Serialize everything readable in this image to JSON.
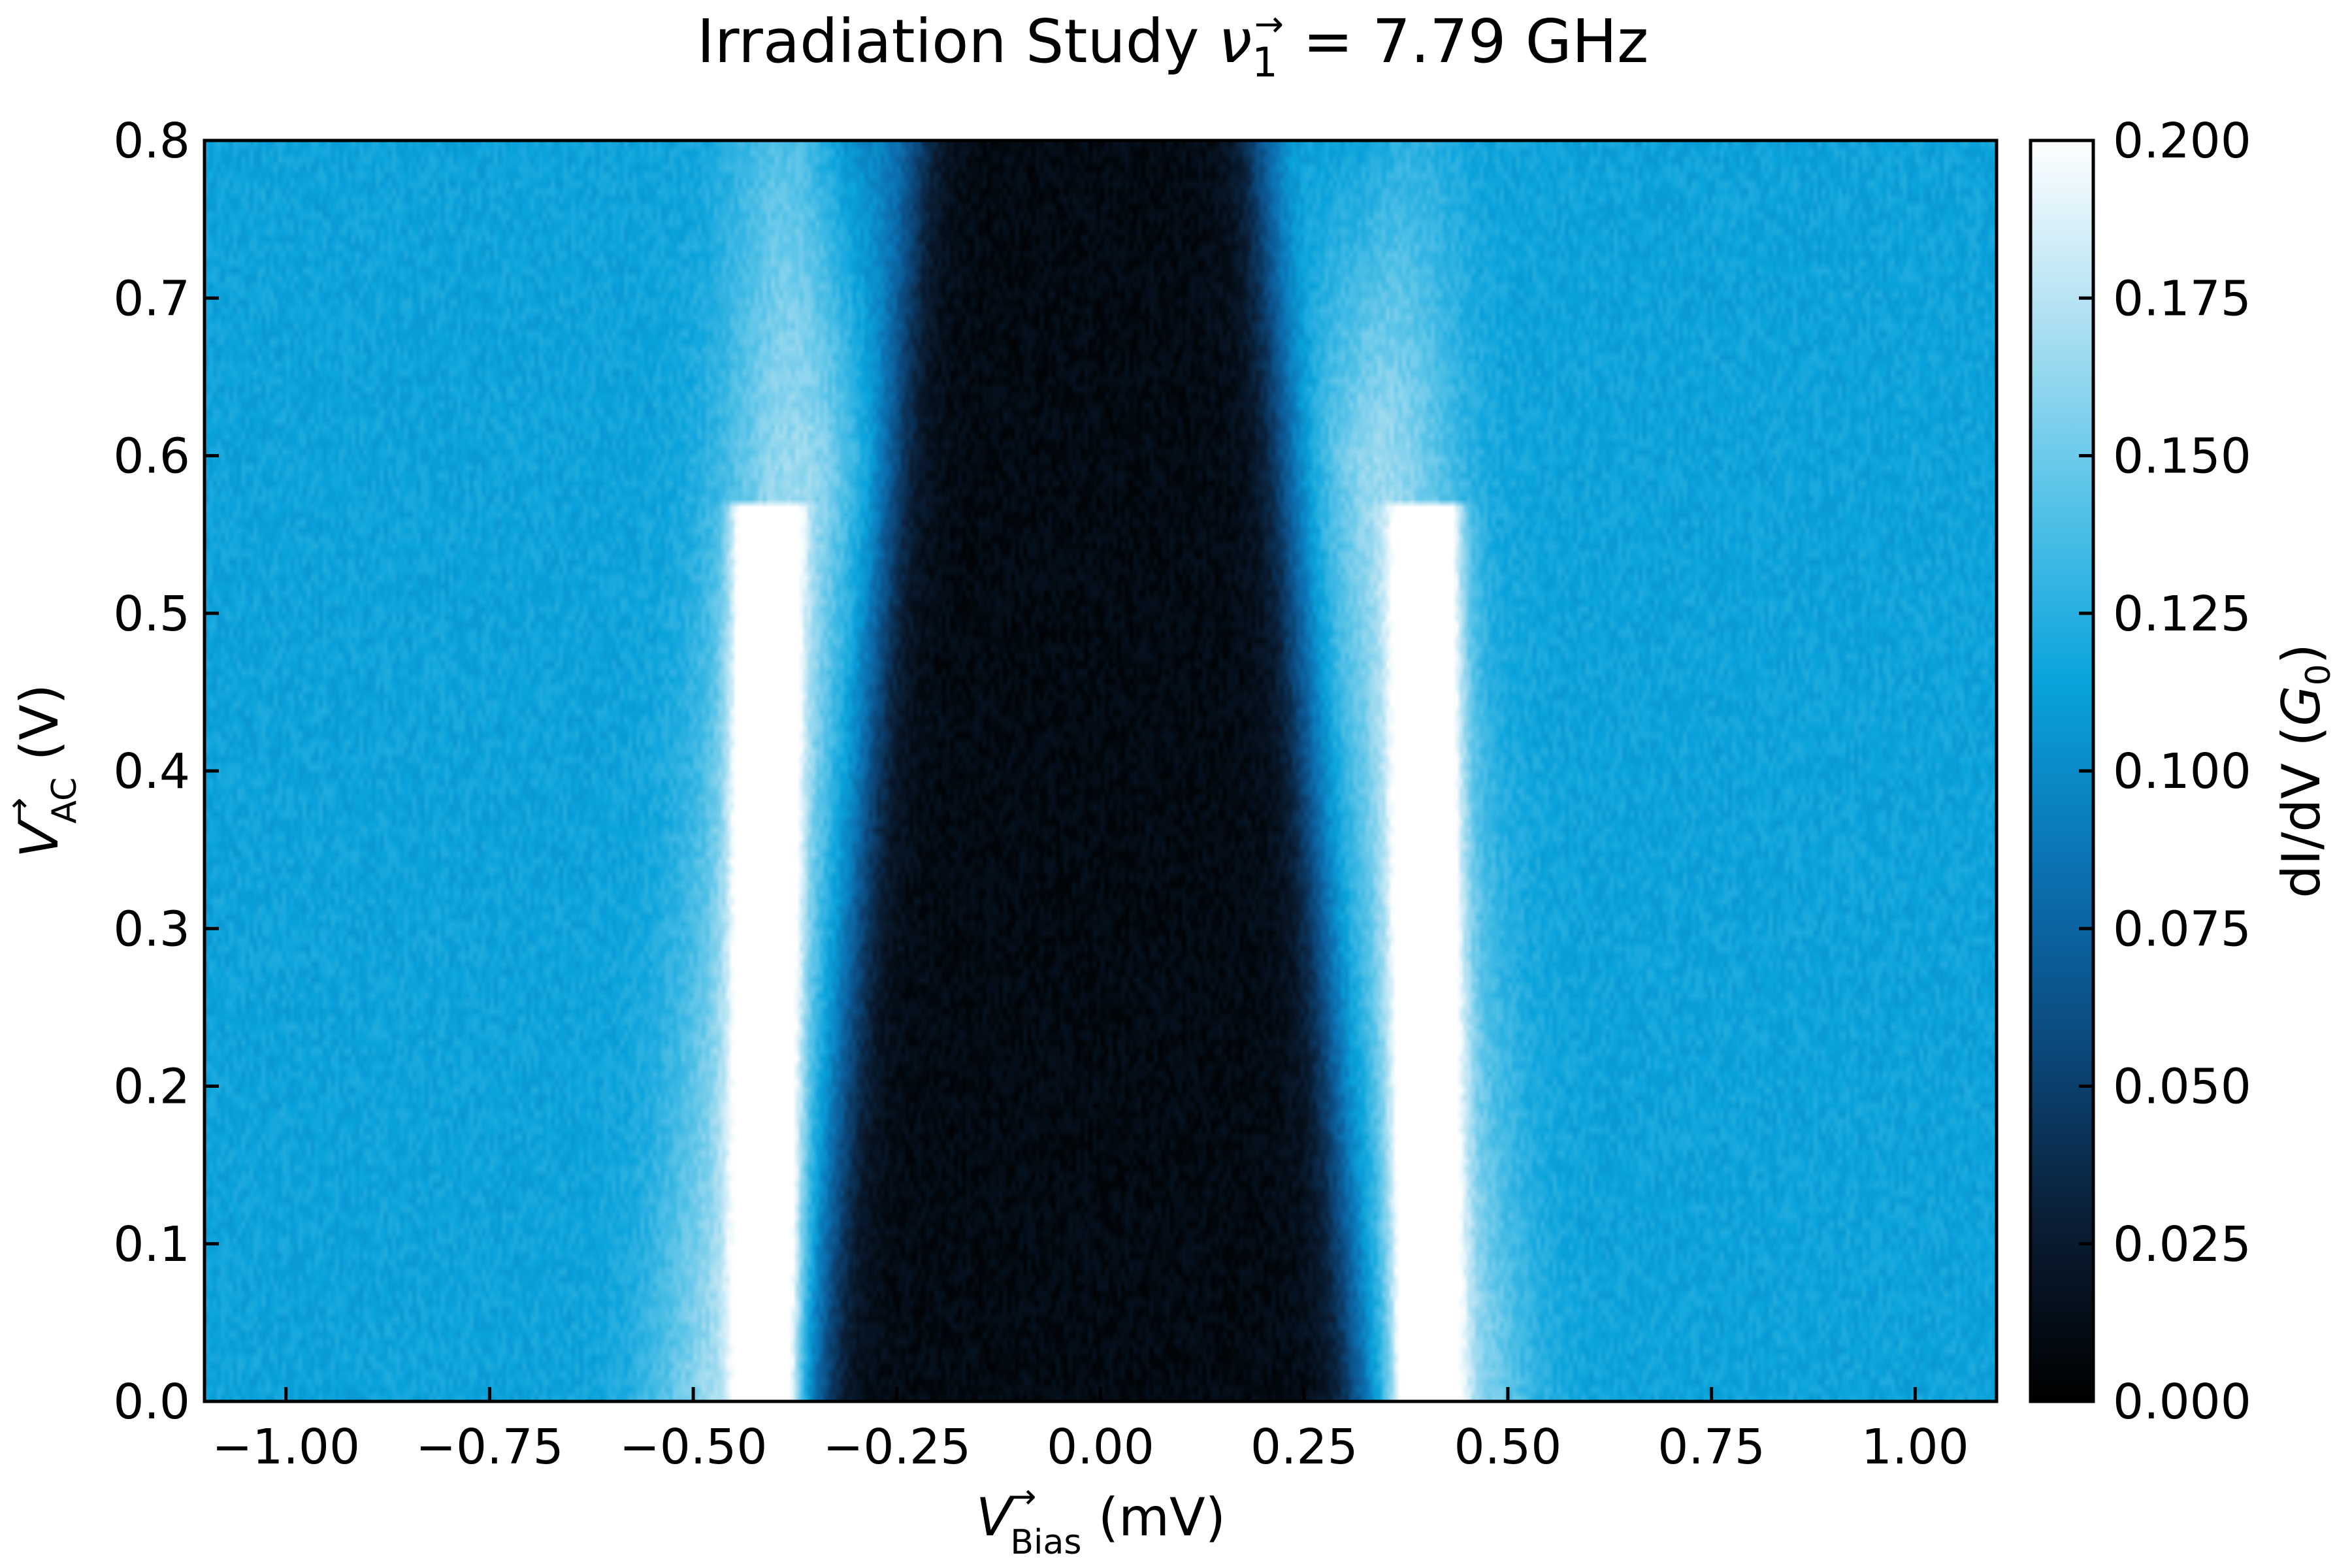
{
  "chart_data": {
    "type": "heatmap",
    "title_main": "Irradiation Study ",
    "title_symbol": "ν",
    "title_sub": "1",
    "title_sup": "→",
    "title_value": " = 7.79 GHz",
    "xlabel_symbol": "V",
    "xlabel_sup": "→",
    "xlabel_sub": "Bias",
    "xlabel_unit": " (mV)",
    "ylabel_symbol": "V",
    "ylabel_sup": "→",
    "ylabel_sub": "AC",
    "ylabel_unit": " (V)",
    "colorbar_label_prefix": "dI/dV (",
    "colorbar_label_symbol": "G",
    "colorbar_label_sub": "0",
    "colorbar_label_suffix": ")",
    "xlim": [
      -1.1,
      1.1
    ],
    "ylim": [
      0.0,
      0.8
    ],
    "clim": [
      0.0,
      0.2
    ],
    "colormap": [
      "#000000",
      "#0a1e35",
      "#0b4a7e",
      "#0b73b4",
      "#0aa3dc",
      "#57c3e8",
      "#aee0f2",
      "#ffffff"
    ],
    "x_ticks": [
      -1.0,
      -0.75,
      -0.5,
      -0.25,
      0.0,
      0.25,
      0.5,
      0.75,
      1.0
    ],
    "x_tick_labels": [
      "−1.00",
      "−0.75",
      "−0.50",
      "−0.25",
      "0.00",
      "0.25",
      "0.50",
      "0.75",
      "1.00"
    ],
    "y_ticks": [
      0.0,
      0.1,
      0.2,
      0.3,
      0.4,
      0.5,
      0.6,
      0.7,
      0.8
    ],
    "y_tick_labels": [
      "0.0",
      "0.1",
      "0.2",
      "0.3",
      "0.4",
      "0.5",
      "0.6",
      "0.7",
      "0.8"
    ],
    "colorbar_ticks": [
      0.0,
      0.025,
      0.05,
      0.075,
      0.1,
      0.125,
      0.15,
      0.175,
      0.2
    ],
    "colorbar_tick_labels": [
      "0.000",
      "0.025",
      "0.050",
      "0.075",
      "0.100",
      "0.125",
      "0.150",
      "0.175",
      "0.200"
    ],
    "field": {
      "background_value": 0.115,
      "gap_center": -0.015,
      "gap_half_width_at_zero": 0.33,
      "gap_half_width_at_top": 0.21,
      "gap_value": 0.01,
      "coherence_peak_positions": [
        -0.41,
        0.4
      ],
      "coherence_peak_value": 0.2,
      "coherence_peak_vac_max": 0.57,
      "upper_side_features_value": 0.06
    }
  }
}
